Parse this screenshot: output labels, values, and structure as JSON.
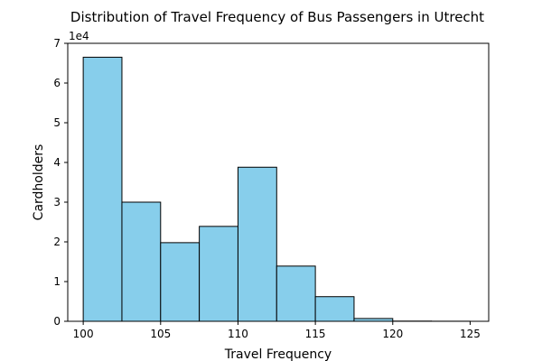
{
  "chart_data": {
    "type": "bar",
    "title": "Distribution of Travel Frequency of Bus Passengers in Utrecht",
    "xlabel": "Travel Frequency",
    "ylabel": "Cardholders",
    "y_offset_label": "1e4",
    "bins": [
      {
        "start": 100.0,
        "end": 102.5,
        "value": 66500
      },
      {
        "start": 102.5,
        "end": 105.0,
        "value": 30000
      },
      {
        "start": 105.0,
        "end": 107.5,
        "value": 19800
      },
      {
        "start": 107.5,
        "end": 110.0,
        "value": 23900
      },
      {
        "start": 110.0,
        "end": 112.5,
        "value": 38800
      },
      {
        "start": 112.5,
        "end": 115.0,
        "value": 13900
      },
      {
        "start": 115.0,
        "end": 117.5,
        "value": 6200
      },
      {
        "start": 117.5,
        "end": 120.0,
        "value": 700
      },
      {
        "start": 120.0,
        "end": 122.5,
        "value": 50
      },
      {
        "start": 122.5,
        "end": 125.0,
        "value": 20
      }
    ],
    "xlim": [
      99,
      126.2
    ],
    "ylim": [
      0,
      70000
    ],
    "xticks": [
      100,
      105,
      110,
      115,
      120,
      125
    ],
    "yticks": [
      0,
      10000,
      20000,
      30000,
      40000,
      50000,
      60000,
      70000
    ],
    "ytick_labels": [
      "0",
      "1",
      "2",
      "3",
      "4",
      "5",
      "6",
      "7"
    ],
    "colors": {
      "bar": "#87CEEB",
      "edge": "#000000"
    },
    "grid": false
  }
}
